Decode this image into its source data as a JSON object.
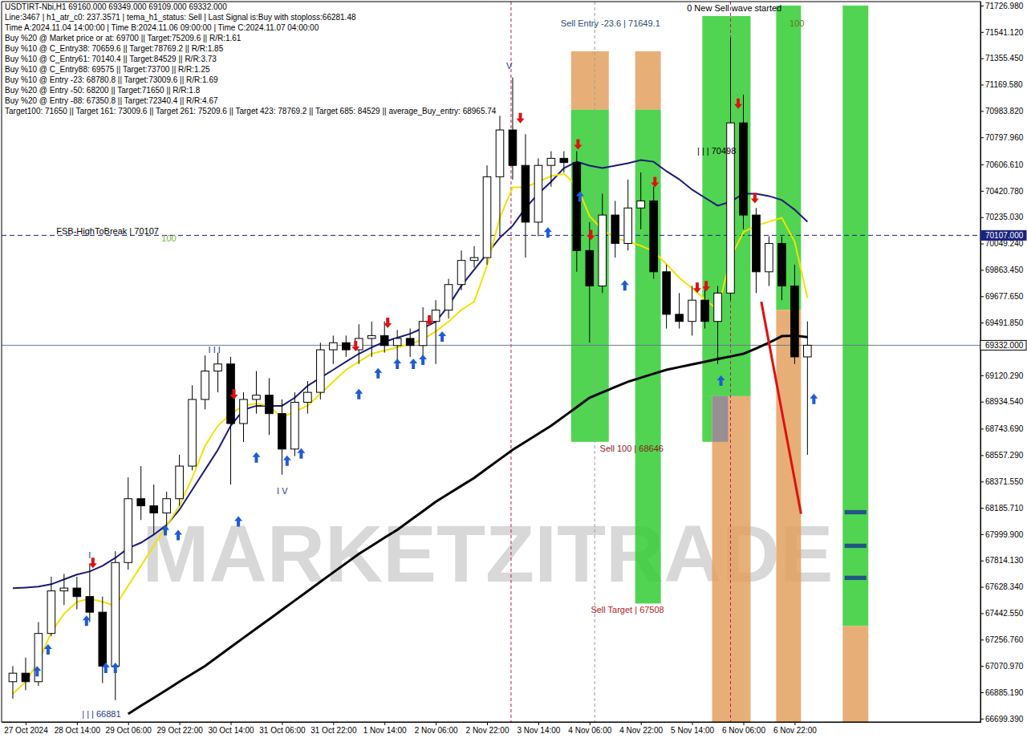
{
  "chart_data": {
    "type": "candlestick",
    "grid": false,
    "xlim": [
      -0.875,
      75.5
    ],
    "ylim": [
      66676,
      71755
    ],
    "yticks": [
      {
        "value": 71726.98,
        "label": "71726.980"
      },
      {
        "value": 71541.12,
        "label": "71541.120"
      },
      {
        "value": 71355.45,
        "label": "71355.450"
      },
      {
        "value": 71169.58,
        "label": "71169.580"
      },
      {
        "value": 70983.82,
        "label": "70983.820"
      },
      {
        "value": 70797.96,
        "label": "70797.960"
      },
      {
        "value": 70606.61,
        "label": "70606.610"
      },
      {
        "value": 70420.78,
        "label": "70420.780"
      },
      {
        "value": 70235.03,
        "label": "70235.030"
      },
      {
        "value": 70049.24,
        "label": "70049.240"
      },
      {
        "value": 69863.45,
        "label": "69863.450"
      },
      {
        "value": 69677.65,
        "label": "69677.650"
      },
      {
        "value": 69491.85,
        "label": "69491.850"
      },
      {
        "value": 69120.29,
        "label": "69120.290"
      },
      {
        "value": 68934.54,
        "label": "68934.540"
      },
      {
        "value": 68743.69,
        "label": "68743.690"
      },
      {
        "value": 68557.29,
        "label": "68557.290"
      },
      {
        "value": 68371.55,
        "label": "68371.550"
      },
      {
        "value": 68185.71,
        "label": "68185.710"
      },
      {
        "value": 67999.9,
        "label": "67999.900"
      },
      {
        "value": 67814.13,
        "label": "67814.130"
      },
      {
        "value": 67628.34,
        "label": "67628.340"
      },
      {
        "value": 67442.55,
        "label": "67442.550"
      },
      {
        "value": 67256.76,
        "label": "67256.760"
      },
      {
        "value": 67070.97,
        "label": "67070.970"
      },
      {
        "value": 66885.19,
        "label": "66885.190"
      },
      {
        "value": 66699.39,
        "label": "66699.390"
      }
    ],
    "categories": [
      null,
      "27 Oct 2024",
      null,
      null,
      null,
      "28 Oct 14:00",
      null,
      null,
      null,
      "29 Oct 06:00",
      null,
      null,
      null,
      "29 Oct 22:00",
      null,
      null,
      null,
      "30 Oct 14:00",
      null,
      null,
      null,
      "31 Oct 06:00",
      null,
      null,
      null,
      "31 Oct 22:00",
      null,
      null,
      null,
      "1 Nov 14:00",
      null,
      null,
      null,
      "2 Nov 06:00",
      null,
      null,
      null,
      "2 Nov 22:00",
      null,
      null,
      null,
      "3 Nov 14:00",
      null,
      null,
      null,
      "4 Nov 06:00",
      null,
      null,
      null,
      "4 Nov 22:00",
      null,
      null,
      null,
      "5 Nov 14:00",
      null,
      null,
      null,
      "6 Nov 06:00",
      null,
      null,
      null,
      "6 Nov 22:00",
      null
    ],
    "open": [
      66960,
      67020,
      66960,
      67300,
      67600,
      67620,
      67560,
      67450,
      67070,
      67800,
      68250,
      68200,
      68150,
      68250,
      68480,
      68950,
      69150,
      69200,
      68780,
      68950,
      68980,
      68850,
      68600,
      68930,
      69000,
      69300,
      69350,
      69300,
      69380,
      69400,
      69330,
      69380,
      69330,
      69500,
      69580,
      69760,
      69930,
      69950,
      70520,
      70850,
      70600,
      70200,
      70600,
      70650,
      70620,
      70000,
      69750,
      70250,
      70050,
      70300,
      70350,
      69850,
      69550,
      69500,
      69650,
      69500,
      69700,
      70900,
      70250,
      69850,
      70050,
      69750,
      69250
    ],
    "high": [
      67070,
      67130,
      67380,
      67700,
      67720,
      67700,
      67790,
      67560,
      67880,
      68400,
      68480,
      68350,
      68300,
      68560,
      69050,
      69260,
      69280,
      69250,
      69000,
      69150,
      69100,
      68950,
      69000,
      69080,
      69350,
      69400,
      69400,
      69480,
      69500,
      69500,
      69440,
      69450,
      69600,
      69650,
      69800,
      70000,
      70030,
      70600,
      70950,
      71220,
      70820,
      70650,
      70700,
      70700,
      70700,
      70200,
      70400,
      70350,
      70500,
      70550,
      70450,
      69900,
      69700,
      69750,
      69750,
      69750,
      71500,
      71100,
      70300,
      70100,
      70100,
      69900,
      69500
    ],
    "low": [
      66840,
      66900,
      66930,
      67280,
      67500,
      67470,
      67380,
      66950,
      66830,
      67750,
      68100,
      68000,
      68020,
      68200,
      68450,
      68880,
      69000,
      68350,
      68650,
      68850,
      68700,
      68420,
      68550,
      68850,
      68950,
      69200,
      69250,
      69200,
      69250,
      69280,
      69220,
      69250,
      69250,
      69200,
      69520,
      69720,
      69880,
      69900,
      70100,
      70500,
      69950,
      70100,
      70450,
      70550,
      69850,
      69350,
      69700,
      69950,
      70000,
      70150,
      69800,
      69450,
      69450,
      69400,
      69450,
      69200,
      69650,
      70150,
      69700,
      69750,
      69650,
      69200,
      68560
    ],
    "close": [
      67020,
      66960,
      67300,
      67600,
      67620,
      67560,
      67450,
      67070,
      67800,
      68250,
      68200,
      68150,
      68250,
      68480,
      68950,
      69150,
      69200,
      68780,
      68950,
      68980,
      68850,
      68600,
      68930,
      69000,
      69300,
      69350,
      69300,
      69380,
      69400,
      69330,
      69380,
      69330,
      69500,
      69580,
      69760,
      69930,
      69950,
      70520,
      70850,
      70600,
      70200,
      70600,
      70650,
      70620,
      70000,
      69750,
      70250,
      70050,
      70300,
      70350,
      69850,
      69550,
      69500,
      69650,
      69500,
      69700,
      70900,
      70250,
      69850,
      70050,
      69750,
      69250,
      69332
    ],
    "lines": [
      {
        "color": "#000000",
        "values": [
          null,
          null,
          null,
          null,
          null,
          null,
          null,
          null,
          null,
          66733,
          66790,
          66846,
          66902,
          66960,
          67015,
          67071,
          67137,
          67203,
          67269,
          67335,
          67400,
          67466,
          67532,
          67598,
          67664,
          67730,
          67795,
          67861,
          67918,
          67975,
          68031,
          68097,
          68162,
          68228,
          68285,
          68341,
          68397,
          68463,
          68529,
          68595,
          68651,
          68708,
          68764,
          68830,
          68896,
          68962,
          69000,
          69038,
          69075,
          69103,
          69131,
          69159,
          69178,
          69197,
          69216,
          69235,
          69253,
          69272,
          69310,
          69350,
          69396,
          69400,
          69390
        ]
      },
      {
        "color": "#1a1a7a",
        "values": [
          67619,
          67624,
          67630,
          67647,
          67681,
          67715,
          67737,
          67777,
          67833,
          67901,
          67940,
          67997,
          68065,
          68172,
          68313,
          68454,
          68595,
          68764,
          68877,
          68905,
          68905,
          68905,
          68962,
          69046,
          69103,
          69159,
          69216,
          69272,
          69317,
          69357,
          69385,
          69413,
          69453,
          69498,
          69611,
          69752,
          69865,
          69977,
          70090,
          70175,
          70299,
          70401,
          70485,
          70581,
          70626,
          70598,
          70581,
          70598,
          70615,
          70638,
          70626,
          70559,
          70502,
          70429,
          70372,
          70316,
          70344,
          70401,
          70401,
          70384,
          70356,
          70288,
          70203
        ]
      },
      {
        "color": "#f2e200",
        "values": [
          66874,
          66959,
          67100,
          67308,
          67438,
          67523,
          67545,
          67523,
          67495,
          67636,
          67777,
          67918,
          68059,
          68200,
          68397,
          68623,
          68764,
          68849,
          68905,
          68922,
          68905,
          68821,
          68866,
          68905,
          68990,
          69075,
          69159,
          69216,
          69272,
          69295,
          69317,
          69340,
          69374,
          69430,
          69498,
          69582,
          69639,
          69893,
          70231,
          70446,
          70446,
          70485,
          70525,
          70542,
          70457,
          70243,
          70147,
          70090,
          70062,
          70034,
          69994,
          69904,
          69808,
          69735,
          69656,
          69582,
          69949,
          70130,
          70175,
          70203,
          70231,
          70062,
          69667
        ]
      }
    ],
    "zones": [
      {
        "x0": 43.56,
        "x1": 46.5,
        "y0": 70993,
        "y1": 71405,
        "color": "#e3a15f"
      },
      {
        "x0": 43.56,
        "x1": 46.5,
        "y0": 68651,
        "y1": 70993,
        "color": "#33cc33"
      },
      {
        "x0": 48.56,
        "x1": 50.56,
        "y0": 70993,
        "y1": 71405,
        "color": "#e3a15f"
      },
      {
        "x0": 48.56,
        "x1": 50.56,
        "y0": 67511,
        "y1": 70993,
        "color": "#33cc33"
      },
      {
        "x0": 53.8,
        "x1": 57.56,
        "y0": 68973,
        "y1": 71653,
        "color": "#33cc33"
      },
      {
        "x0": 53.8,
        "x1": 54.56,
        "y0": 68651,
        "y1": 68973,
        "color": "#33cc33"
      },
      {
        "x0": 54.56,
        "x1": 57.56,
        "y0": 66676,
        "y1": 68973,
        "color": "#e3a15f"
      },
      {
        "x0": 54.56,
        "x1": 55.8,
        "y0": 68651,
        "y1": 68973,
        "color": "#8a8a9a"
      },
      {
        "x0": 59.56,
        "x1": 61.5,
        "y0": 69582,
        "y1": 71727,
        "color": "#33cc33"
      },
      {
        "x0": 59.56,
        "x1": 61.5,
        "y0": 66676,
        "y1": 69582,
        "color": "#e3a15f"
      },
      {
        "x0": 64.75,
        "x1": 66.75,
        "y0": 67353,
        "y1": 71727,
        "color": "#33cc33"
      },
      {
        "x0": 64.75,
        "x1": 66.75,
        "y0": 66676,
        "y1": 67353,
        "color": "#e3a15f"
      },
      {
        "x0": 64.9,
        "x1": 66.6,
        "y0": 68140,
        "y1": 68170,
        "color": "#1a3e8c"
      },
      {
        "x0": 64.9,
        "x1": 66.6,
        "y0": 67903,
        "y1": 67933,
        "color": "#1a3e8c"
      },
      {
        "x0": 64.9,
        "x1": 66.6,
        "y0": 67677,
        "y1": 67707,
        "color": "#1a3e8c"
      }
    ],
    "vlines": [
      {
        "x": 38.875,
        "color": "#c2185b",
        "line_style": "dashed"
      },
      {
        "x": 45.4,
        "color": "#9e9e9e",
        "line_style": "dashed"
      },
      {
        "x": 56.0,
        "color": "#c2185b",
        "line_style": "dashed"
      }
    ],
    "hlines": [
      {
        "value": 70107,
        "color": "#1a237e",
        "line_style": "dashed"
      },
      {
        "value": 69332,
        "color": "#6b7a8f",
        "line_style": "solid"
      }
    ],
    "segments": [
      {
        "x0": 58.4,
        "y0": 69639,
        "x1": 61.5,
        "y1": 68144,
        "color": "#e01010"
      }
    ],
    "markers": [
      {
        "x": 1.9,
        "y": 67071,
        "marker": "arrow-up",
        "color": "#1e5bd8"
      },
      {
        "x": 2.75,
        "y": 67224,
        "marker": "arrow-up",
        "color": "#1e5bd8"
      },
      {
        "x": 5.75,
        "y": 67427,
        "marker": "arrow-up",
        "color": "#1e5bd8"
      },
      {
        "x": 7.25,
        "y": 67094,
        "marker": "arrow-up",
        "color": "#1e5bd8"
      },
      {
        "x": 8.0,
        "y": 67094,
        "marker": "arrow-up",
        "color": "#1e5bd8"
      },
      {
        "x": 11.9,
        "y": 68065,
        "marker": "arrow-up",
        "color": "#1e5bd8"
      },
      {
        "x": 12.9,
        "y": 68031,
        "marker": "arrow-up",
        "color": "#1e5bd8"
      },
      {
        "x": 17.6,
        "y": 68127,
        "marker": "arrow-up",
        "color": "#1e5bd8"
      },
      {
        "x": 19.0,
        "y": 68578,
        "marker": "arrow-up",
        "color": "#1e5bd8"
      },
      {
        "x": 21.4,
        "y": 68555,
        "marker": "arrow-up",
        "color": "#1e5bd8"
      },
      {
        "x": 22.5,
        "y": 68606,
        "marker": "arrow-up",
        "color": "#1e5bd8"
      },
      {
        "x": 27.0,
        "y": 69024,
        "marker": "arrow-up",
        "color": "#1e5bd8"
      },
      {
        "x": 28.5,
        "y": 69171,
        "marker": "arrow-up",
        "color": "#1e5bd8"
      },
      {
        "x": 30.0,
        "y": 69238,
        "marker": "arrow-up",
        "color": "#1e5bd8"
      },
      {
        "x": 31.25,
        "y": 69238,
        "marker": "arrow-up",
        "color": "#1e5bd8"
      },
      {
        "x": 32.0,
        "y": 69266,
        "marker": "arrow-up",
        "color": "#1e5bd8"
      },
      {
        "x": 33.5,
        "y": 69430,
        "marker": "arrow-up",
        "color": "#1e5bd8"
      },
      {
        "x": 41.75,
        "y": 70164,
        "marker": "arrow-up",
        "color": "#1e5bd8"
      },
      {
        "x": 44.25,
        "y": 70418,
        "marker": "arrow-up",
        "color": "#1e5bd8"
      },
      {
        "x": 47.75,
        "y": 69791,
        "marker": "arrow-up",
        "color": "#1e5bd8"
      },
      {
        "x": 55.25,
        "y": 69120,
        "marker": "arrow-up",
        "color": "#1e5bd8"
      },
      {
        "x": 62.5,
        "y": 68990,
        "marker": "arrow-up",
        "color": "#1e5bd8"
      },
      {
        "x": 6.25,
        "y": 67760,
        "marker": "arrow-down",
        "color": "#e01010"
      },
      {
        "x": 17.25,
        "y": 68950,
        "marker": "arrow-down",
        "color": "#e01010"
      },
      {
        "x": 26.75,
        "y": 69289,
        "marker": "arrow-down",
        "color": "#e01010"
      },
      {
        "x": 29.25,
        "y": 69453,
        "marker": "arrow-down",
        "color": "#e01010"
      },
      {
        "x": 32.5,
        "y": 69470,
        "marker": "arrow-down",
        "color": "#e01010"
      },
      {
        "x": 39.6,
        "y": 70897,
        "marker": "arrow-down",
        "color": "#e01010"
      },
      {
        "x": 44.1,
        "y": 70711,
        "marker": "arrow-down",
        "color": "#e01010"
      },
      {
        "x": 45.1,
        "y": 70073,
        "marker": "arrow-down",
        "color": "#e01010"
      },
      {
        "x": 50.1,
        "y": 70446,
        "marker": "arrow-down",
        "color": "#e01010"
      },
      {
        "x": 53.4,
        "y": 69701,
        "marker": "arrow-down",
        "color": "#e01010"
      },
      {
        "x": 54.1,
        "y": 69712,
        "marker": "arrow-down",
        "color": "#e01010"
      },
      {
        "x": 56.6,
        "y": 70999,
        "marker": "arrow-down",
        "color": "#e01010"
      },
      {
        "x": 57.9,
        "y": 70333,
        "marker": "arrow-down",
        "color": "#e01010"
      }
    ],
    "annotations": [
      {
        "text": "0 New Sell wave started",
        "x": 52.6,
        "y": 71710,
        "color": "#000000"
      },
      {
        "text": "Sell Entry -23.6 | 71649.1",
        "x": 42.75,
        "y": 71603,
        "color": "#2e4a7a"
      },
      {
        "text": "100",
        "x": 60.6,
        "y": 71603,
        "color": "#5a7d1a"
      },
      {
        "text": "| | | 70498",
        "x": 53.4,
        "y": 70700,
        "color": "#000000"
      },
      {
        "text": "Sell 100 | 68646",
        "x": 45.8,
        "y": 68601,
        "color": "#8b1a1a"
      },
      {
        "text": "Sell Target | 67508",
        "x": 45.1,
        "y": 67466,
        "color": "#b22222"
      },
      {
        "text": "FSB-HighToBreak | 70107",
        "x": 3.4,
        "y": 70135,
        "color": "#000000"
      },
      {
        "text": "100",
        "x": 11.6,
        "y": 70085,
        "color": "#7cb342"
      },
      {
        "text": "| | | 66881",
        "x": 5.4,
        "y": 66733,
        "color": "#1e3a8a"
      },
      {
        "text": "V",
        "x": 38.5,
        "y": 71304,
        "color": "#1e3a8a"
      },
      {
        "text": "I V",
        "x": 20.6,
        "y": 68302,
        "color": "#1e3a8a"
      },
      {
        "text": "I I I",
        "x": 15.25,
        "y": 69300,
        "color": "#1e3a8a"
      },
      {
        "text": "I",
        "x": 5.9,
        "y": 67850,
        "color": "#1e3a8a"
      }
    ],
    "price_labels": [
      {
        "value": 70107,
        "label": "70107.000",
        "color": "#1a237e"
      },
      {
        "value": 69332,
        "label": "69332.000",
        "color": "#ffffff"
      }
    ],
    "watermark": {
      "text": "MARKETZITRADE",
      "x": 10.1,
      "y": 67664,
      "color": "#7f7f7f"
    },
    "info_lines": [
      "USDTIRT-Nbi,H1  69160.000 69349.000 69109.000 69332.000",
      "Line:3467 | h1_atr_c0: 237.3571 | tema_h1_status: Sell | Last Signal is:Buy with stoploss:66281.48",
      "Time A:2024.11.04 14:00:00 | Time B:2024.11.06 09:00:00 | Time C:2024.11.07 04:00:00",
      "Buy %20 @ Market price or at: 69700 || Target:75209.6 || R/R:1.61",
      "Buy %10 @ C_Entry38: 70659.6 || Target:78769.2 || R/R:1.85",
      "Buy %10 @ C_Entry61: 70140.4 || Target:84529 || R/R:3.73",
      "Buy %10 @ C_Entry88: 69575 || Target:73700 || R/R:1.25",
      "Buy %10 @ Entry -23: 68780.8 || Target:73009.6 || R/R:1.69",
      "Buy %20 @ Entry -50: 68200 || Target:71650 || R/R:1.8",
      "Buy %20 @ Entry -88: 67350.8 || Target:72340.4 || R/R:4.67",
      "Target100: 71650 || Target 161: 73009.6 || Target 261: 75209.6 || Target 423: 78769.2 || Target 685: 84529 || average_Buy_entry: 68965.74"
    ]
  }
}
